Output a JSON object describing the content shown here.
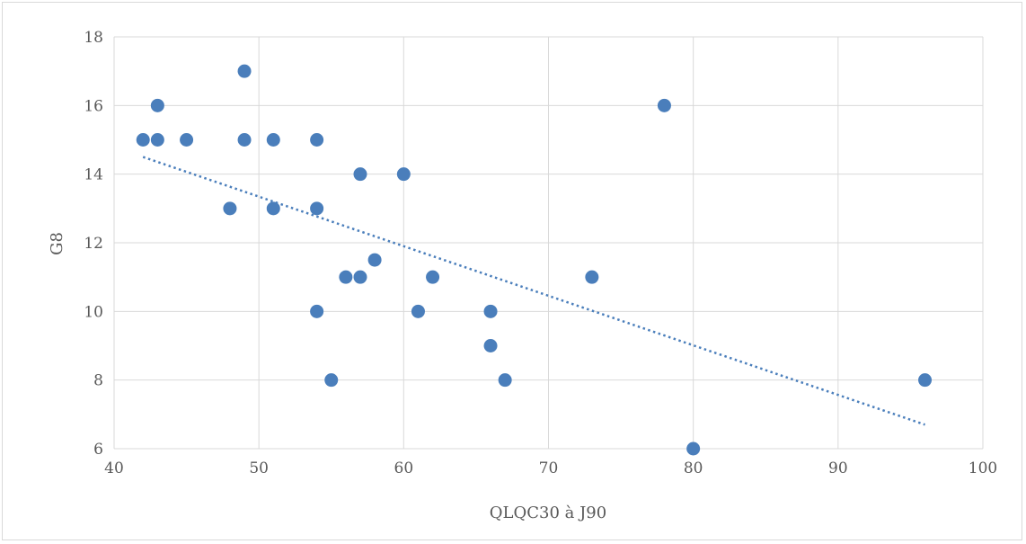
{
  "chart_data": {
    "type": "scatter",
    "title": "",
    "xlabel": "QLQC30 à J90",
    "ylabel": "G8",
    "xlim": [
      40,
      100
    ],
    "ylim": [
      6,
      18
    ],
    "x_ticks": [
      40,
      50,
      60,
      70,
      80,
      90,
      100
    ],
    "y_ticks": [
      6,
      8,
      10,
      12,
      14,
      16,
      18
    ],
    "grid": true,
    "legend": "none",
    "marker_color": "#4a7ebb",
    "trendline": {
      "type": "linear",
      "style": "dotted",
      "color": "#4a7ebb",
      "x": [
        42,
        96
      ],
      "y": [
        14.5,
        6.7
      ]
    },
    "series": [
      {
        "points": [
          [
            42,
            15
          ],
          [
            43,
            16
          ],
          [
            43,
            15
          ],
          [
            45,
            15
          ],
          [
            48,
            13
          ],
          [
            49,
            17
          ],
          [
            49,
            15
          ],
          [
            51,
            15
          ],
          [
            51,
            13
          ],
          [
            54,
            15
          ],
          [
            54,
            13
          ],
          [
            54,
            10
          ],
          [
            55,
            8
          ],
          [
            56,
            11
          ],
          [
            57,
            14
          ],
          [
            57,
            11
          ],
          [
            58,
            11.5
          ],
          [
            60,
            14
          ],
          [
            61,
            10
          ],
          [
            62,
            11
          ],
          [
            66,
            10
          ],
          [
            66,
            9
          ],
          [
            67,
            8
          ],
          [
            73,
            11
          ],
          [
            78,
            16
          ],
          [
            80,
            6
          ],
          [
            96,
            8
          ]
        ]
      }
    ]
  }
}
